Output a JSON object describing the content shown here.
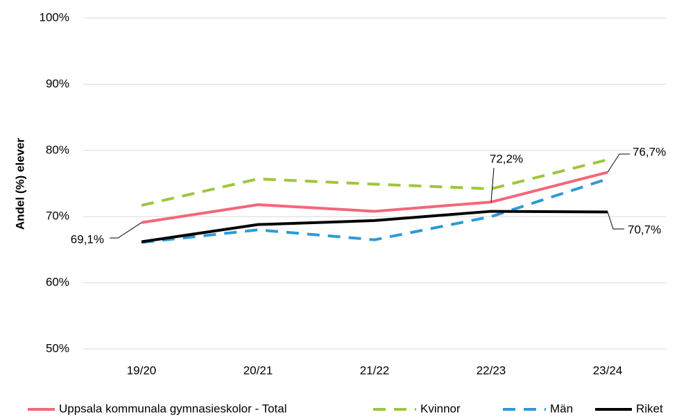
{
  "chart_data": {
    "type": "line",
    "y_label": "Andel (%) elever",
    "categories": [
      "19/20",
      "20/21",
      "21/22",
      "22/23",
      "23/24"
    ],
    "series": [
      {
        "name": "Uppsala kommunala gymnasieskolor - Total",
        "color": "#f4667a",
        "dash": false,
        "values": [
          69.1,
          71.8,
          70.8,
          72.2,
          76.7
        ],
        "value_labels": [
          "69,1%",
          null,
          null,
          "72,2%",
          "76,7%"
        ]
      },
      {
        "name": "Kvinnor",
        "color": "#9dc63d",
        "dash": true,
        "values": [
          71.7,
          75.7,
          74.9,
          74.2,
          78.6
        ]
      },
      {
        "name": "Män",
        "color": "#2e9ad6",
        "dash": true,
        "values": [
          66.1,
          68.0,
          66.5,
          70.0,
          75.7
        ]
      },
      {
        "name": "Riket",
        "color": "#000000",
        "dash": false,
        "values": [
          66.2,
          68.8,
          69.4,
          70.8,
          70.7
        ],
        "value_labels": [
          null,
          null,
          null,
          null,
          "70,7%"
        ]
      }
    ],
    "ylim": [
      50,
      100
    ],
    "yticks": [
      {
        "value": 50,
        "label": "50%"
      },
      {
        "value": 60,
        "label": "60%"
      },
      {
        "value": 70,
        "label": "70%"
      },
      {
        "value": 80,
        "label": "80%"
      },
      {
        "value": 90,
        "label": "90%"
      },
      {
        "value": 100,
        "label": "100%"
      }
    ],
    "grid": true,
    "legend": "bottom"
  }
}
